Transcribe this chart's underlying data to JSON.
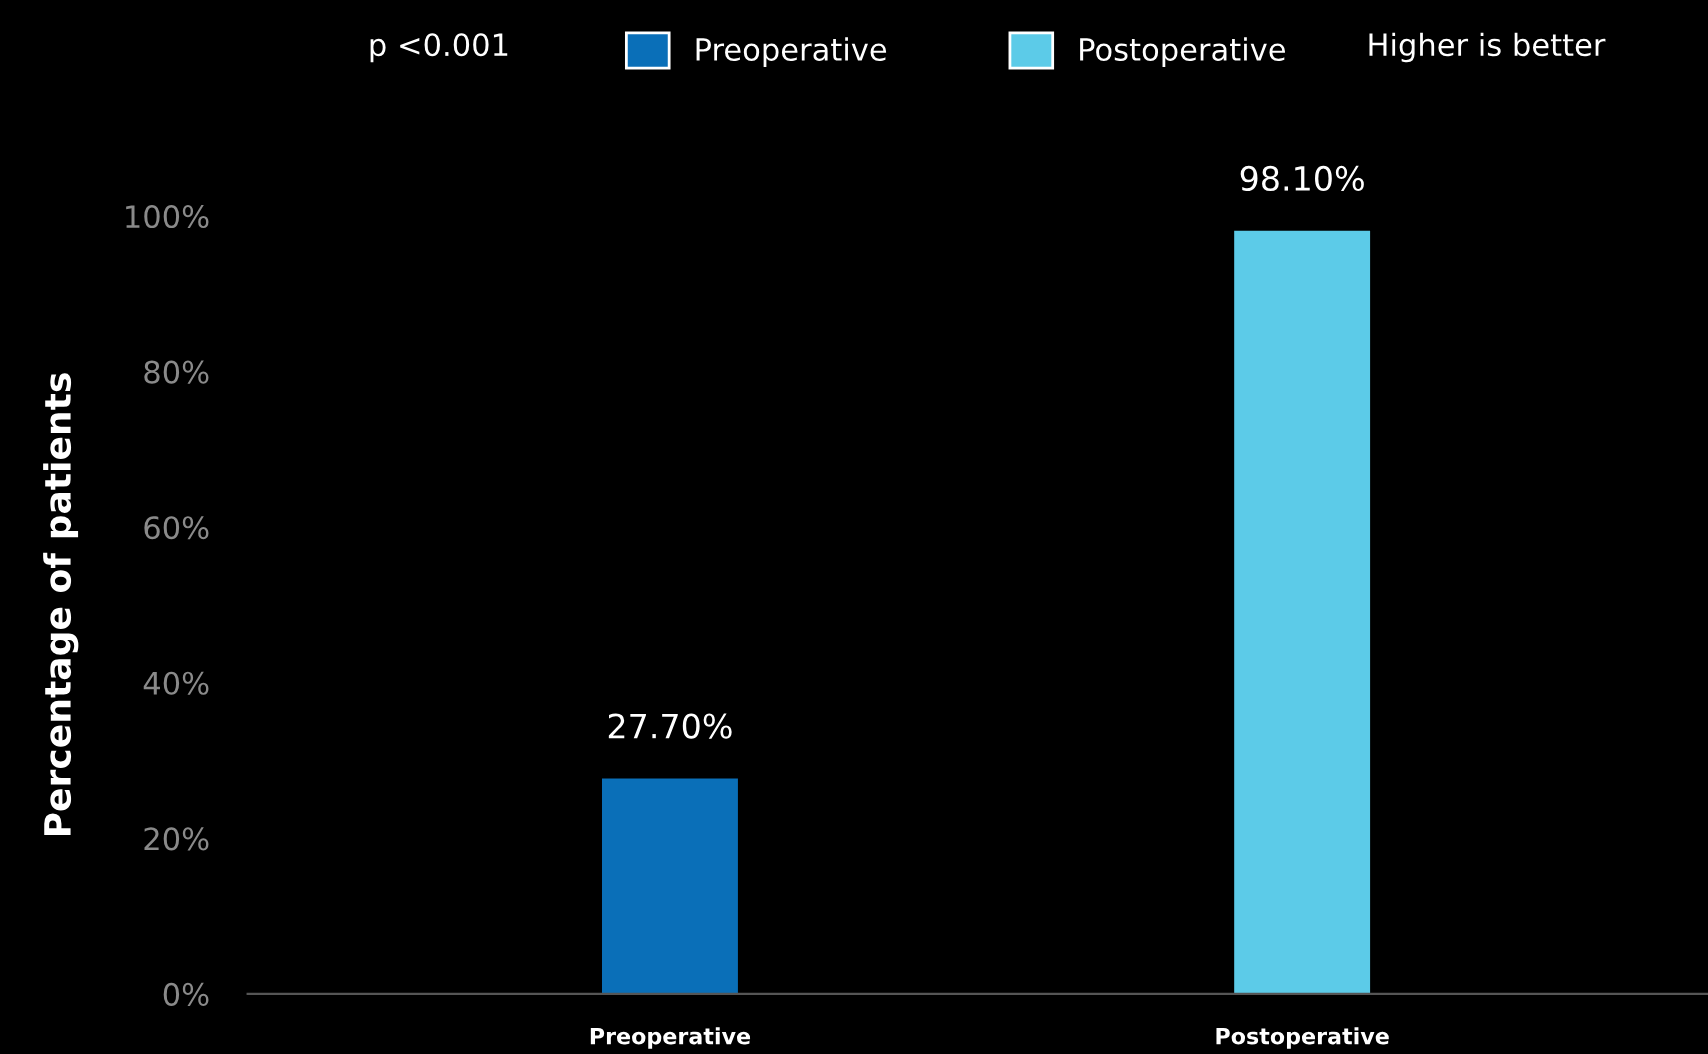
{
  "chart_data": {
    "type": "bar",
    "ylabel": "Percentage of patients",
    "categories": [
      "Preoperative",
      "Postoperative"
    ],
    "series": [
      {
        "name": "Preoperative",
        "color": "#0a6fb8",
        "values": [
          27.7,
          null
        ],
        "value_labels": [
          "27.70%",
          null
        ]
      },
      {
        "name": "Postoperative",
        "color": "#5ccbe8",
        "values": [
          null,
          98.1
        ],
        "value_labels": [
          null,
          "98.10%"
        ]
      }
    ],
    "ylim": [
      0,
      100
    ],
    "yticks": [
      {
        "value": 0,
        "label": "0%"
      },
      {
        "value": 20,
        "label": "20%"
      },
      {
        "value": 40,
        "label": "40%"
      },
      {
        "value": 60,
        "label": "60%"
      },
      {
        "value": 80,
        "label": "80%"
      },
      {
        "value": 100,
        "label": "100%"
      }
    ],
    "annotations": [
      "p <0.001",
      "Higher is better"
    ],
    "legend": "top",
    "grid": false
  }
}
